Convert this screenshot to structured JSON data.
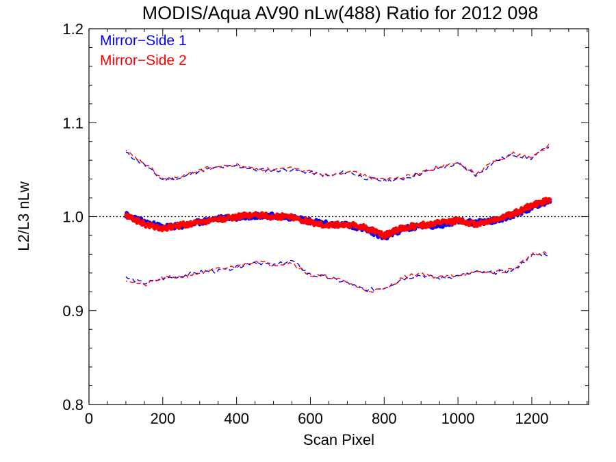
{
  "chart_data": {
    "type": "line",
    "title": "MODIS/Aqua AV90 nLw(488) Ratio for 2012 098",
    "xlabel": "Scan Pixel",
    "ylabel": "L2/L3 nLw",
    "xlim": [
      0,
      1354
    ],
    "ylim": [
      0.8,
      1.2
    ],
    "x_ticks": [
      0,
      200,
      400,
      600,
      800,
      1000,
      1200
    ],
    "y_ticks": [
      0.8,
      0.9,
      1.0,
      1.1,
      1.2
    ],
    "x_tick_labels": [
      "0",
      "200",
      "400",
      "600",
      "800",
      "1000",
      "1200"
    ],
    "y_tick_labels": [
      "0.8",
      "0.9",
      "1.0",
      "1.1",
      "1.2"
    ],
    "x_minor_step": 50,
    "y_minor_step": 0.02,
    "reference_line": {
      "y": 1.0,
      "style": "dotted",
      "color": "#000000"
    },
    "legend": {
      "position": "top-left",
      "entries": [
        {
          "label": "Mirror−Side 1",
          "color": "#0000ff"
        },
        {
          "label": "Mirror−Side 2",
          "color": "#ff0000"
        }
      ]
    },
    "x": [
      100,
      150,
      200,
      250,
      300,
      350,
      400,
      450,
      500,
      550,
      600,
      650,
      700,
      750,
      800,
      850,
      900,
      950,
      1000,
      1050,
      1100,
      1150,
      1200,
      1250
    ],
    "series": [
      {
        "name": "Mirror−Side 1",
        "color": "#0000ff",
        "mean": [
          1.002,
          0.994,
          0.989,
          0.99,
          0.994,
          0.998,
          0.999,
          1.001,
          1.001,
          0.999,
          0.995,
          0.992,
          0.991,
          0.987,
          0.978,
          0.987,
          0.99,
          0.991,
          0.995,
          0.994,
          0.996,
          1.001,
          1.01,
          1.017
        ],
        "upper": [
          1.068,
          1.055,
          1.039,
          1.041,
          1.049,
          1.052,
          1.054,
          1.05,
          1.049,
          1.05,
          1.047,
          1.043,
          1.048,
          1.041,
          1.038,
          1.04,
          1.046,
          1.052,
          1.056,
          1.044,
          1.059,
          1.066,
          1.062,
          1.076
        ],
        "lower": [
          0.935,
          0.929,
          0.934,
          0.937,
          0.941,
          0.942,
          0.946,
          0.952,
          0.948,
          0.953,
          0.938,
          0.935,
          0.929,
          0.922,
          0.924,
          0.934,
          0.938,
          0.934,
          0.937,
          0.941,
          0.94,
          0.943,
          0.959,
          0.96
        ]
      },
      {
        "name": "Mirror−Side 2",
        "color": "#ff0000",
        "mean": [
          1.001,
          0.992,
          0.987,
          0.991,
          0.993,
          0.997,
          1.0,
          1.002,
          1.0,
          1.0,
          0.994,
          0.991,
          0.992,
          0.988,
          0.98,
          0.988,
          0.991,
          0.993,
          0.996,
          0.992,
          0.997,
          1.003,
          1.012,
          1.018
        ],
        "upper": [
          1.069,
          1.057,
          1.04,
          1.042,
          1.05,
          1.053,
          1.055,
          1.051,
          1.05,
          1.051,
          1.048,
          1.044,
          1.049,
          1.043,
          1.039,
          1.042,
          1.047,
          1.053,
          1.057,
          1.045,
          1.06,
          1.067,
          1.063,
          1.077
        ],
        "lower": [
          0.933,
          0.927,
          0.935,
          0.936,
          0.94,
          0.944,
          0.947,
          0.953,
          0.949,
          0.951,
          0.937,
          0.936,
          0.93,
          0.921,
          0.922,
          0.935,
          0.94,
          0.935,
          0.938,
          0.94,
          0.941,
          0.944,
          0.96,
          0.961
        ]
      }
    ]
  }
}
